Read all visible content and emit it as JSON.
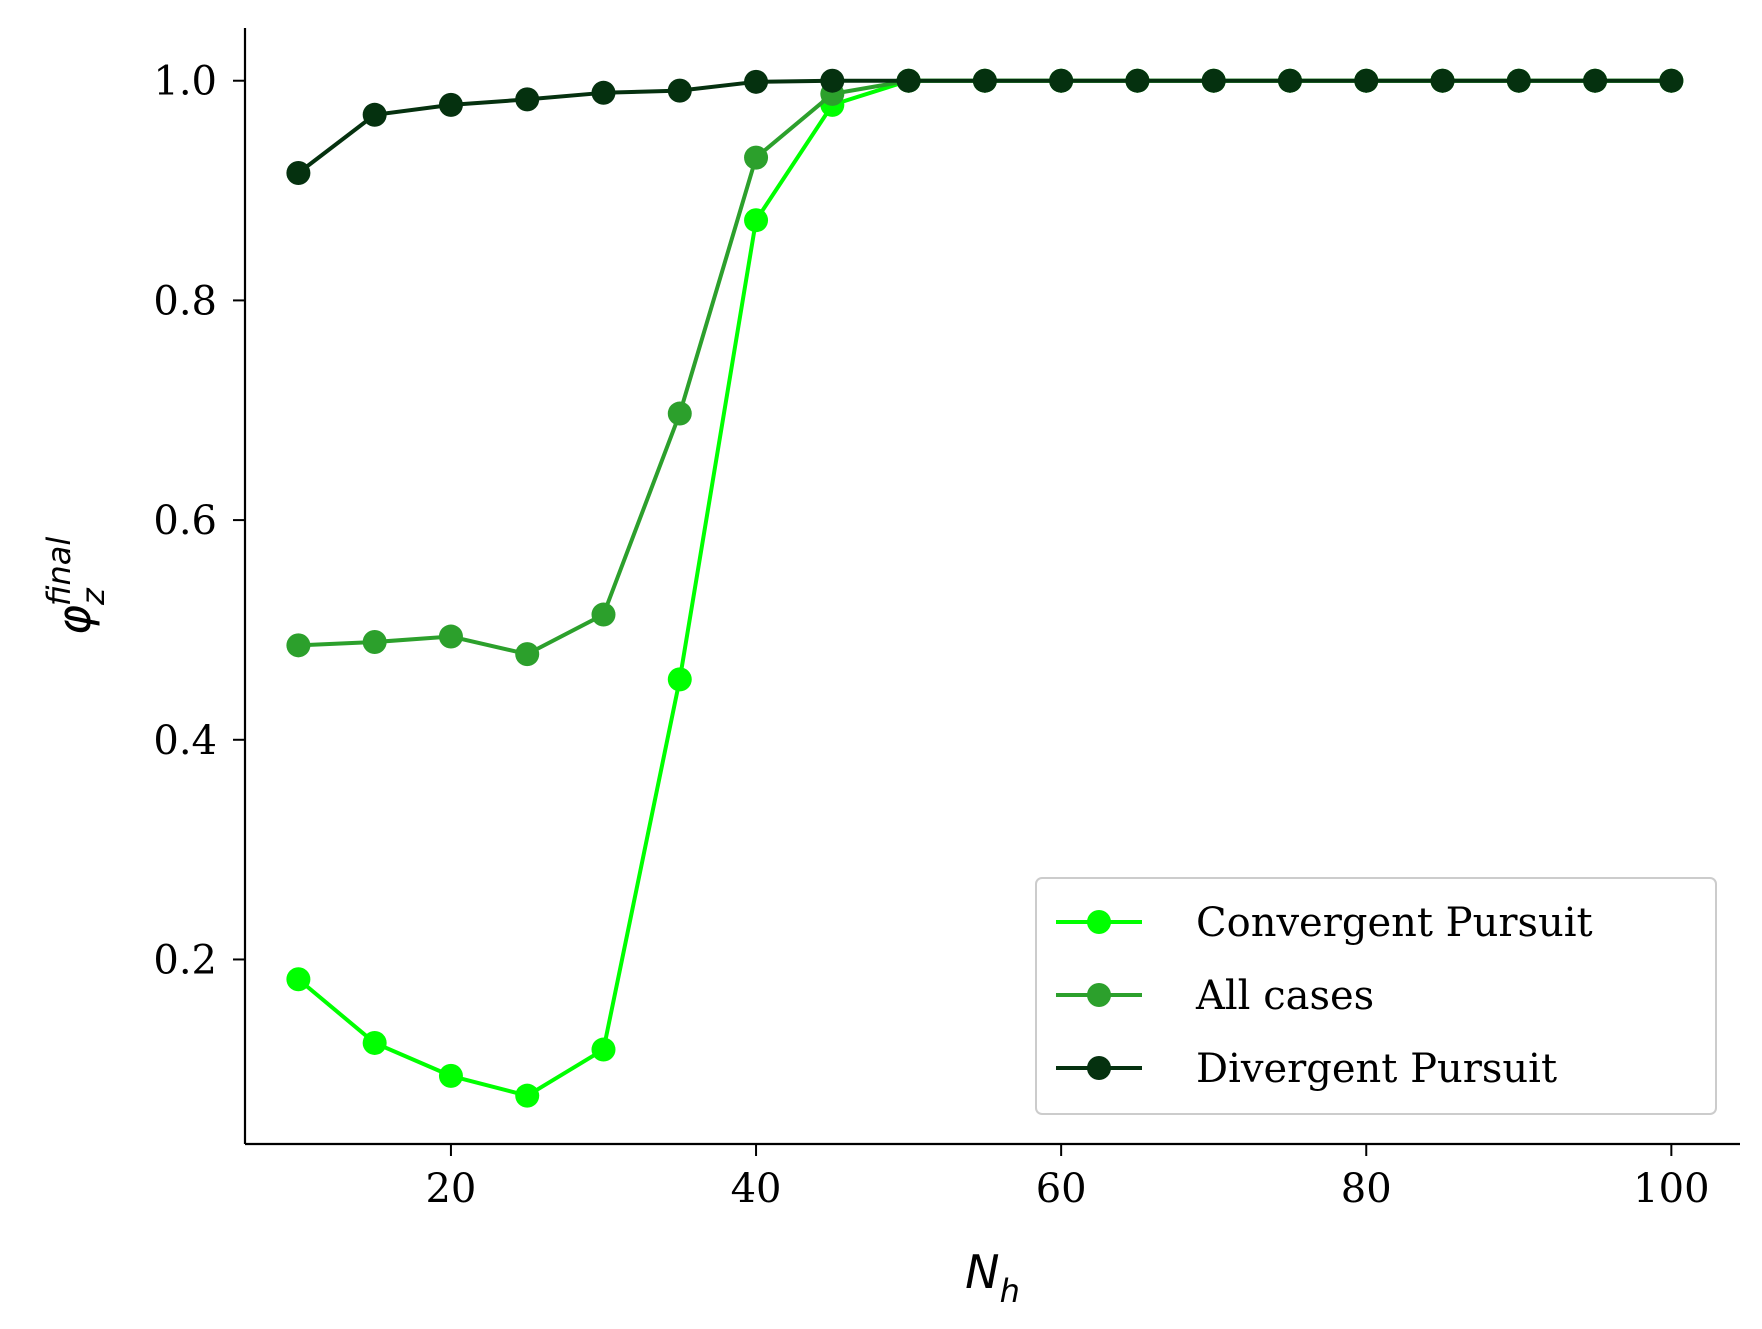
{
  "chart_data": {
    "type": "line",
    "title": "",
    "xlabel": {
      "main": "N",
      "sub": "h"
    },
    "ylabel": {
      "main": "φ",
      "sub": "z",
      "sup": "final"
    },
    "xlim": [
      6.5,
      104.5
    ],
    "ylim": [
      0.032,
      1.048
    ],
    "xticks": [
      20,
      40,
      60,
      80,
      100
    ],
    "yticks": [
      0.2,
      0.4,
      0.6,
      0.8,
      1.0
    ],
    "xtick_labels": [
      "20",
      "40",
      "60",
      "80",
      "100"
    ],
    "ytick_labels": [
      "0.2",
      "0.4",
      "0.6",
      "0.8",
      "1.0"
    ],
    "grid": false,
    "legend_position": "lower-right",
    "x": [
      10,
      15,
      20,
      25,
      30,
      35,
      40,
      45,
      50,
      55,
      60,
      65,
      70,
      75,
      80,
      85,
      90,
      95,
      100
    ],
    "series": [
      {
        "name": "Convergent Pursuit",
        "color": "#00ff00",
        "values": [
          0.182,
          0.124,
          0.094,
          0.076,
          0.118,
          0.455,
          0.873,
          0.978,
          1.0,
          1.0,
          1.0,
          1.0,
          1.0,
          1.0,
          1.0,
          1.0,
          1.0,
          1.0,
          1.0
        ]
      },
      {
        "name": "All cases",
        "color": "#2ca02c",
        "values": [
          0.486,
          0.489,
          0.494,
          0.478,
          0.514,
          0.697,
          0.93,
          0.988,
          1.0,
          1.0,
          1.0,
          1.0,
          1.0,
          1.0,
          1.0,
          1.0,
          1.0,
          1.0,
          1.0
        ]
      },
      {
        "name": "Divergent Pursuit",
        "color": "#05310f",
        "values": [
          0.916,
          0.969,
          0.978,
          0.983,
          0.989,
          0.991,
          0.999,
          1.0,
          1.0,
          1.0,
          1.0,
          1.0,
          1.0,
          1.0,
          1.0,
          1.0,
          1.0,
          1.0,
          1.0
        ]
      }
    ]
  }
}
